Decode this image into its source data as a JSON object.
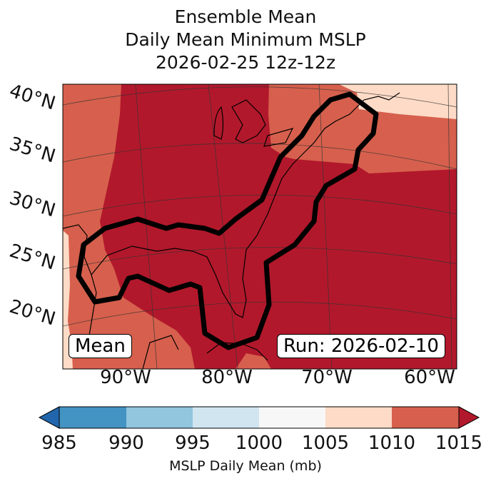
{
  "chart_data": {
    "type": "heatmap",
    "title_lines": [
      "Ensemble Mean",
      "Daily Mean Minimum MSLP",
      "2026-02-25 12z-12z"
    ],
    "lat_labels": [
      "40°N",
      "35°N",
      "30°N",
      "25°N",
      "20°N"
    ],
    "lon_labels": [
      "90°W",
      "80°W",
      "70°W",
      "60°W"
    ],
    "annotations": {
      "left": "Mean",
      "right": "Run: 2026-02-10"
    },
    "colorbar": {
      "label": "MSLP Daily Mean (mb)",
      "ticks": [
        "985",
        "990",
        "995",
        "1000",
        "1005",
        "1010",
        "1015"
      ],
      "levels": [
        985,
        990,
        995,
        1000,
        1005,
        1010,
        1015
      ],
      "colors": [
        "#4393c3",
        "#92c5de",
        "#d1e5f0",
        "#f7f7f7",
        "#fddbc7",
        "#d6604d"
      ],
      "under_color": "#2166ac",
      "over_color": "#b2182b",
      "extend": "both"
    },
    "field_summary": {
      "dominant_range": ">1015 over most of domain",
      "contour": "thick black outline enclosing Gulf of Mexico and US East Coast"
    }
  }
}
